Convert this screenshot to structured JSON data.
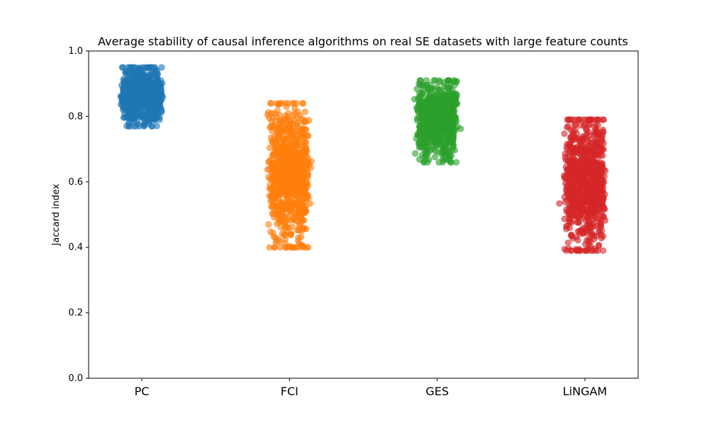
{
  "chart_data": {
    "type": "scatter",
    "title": "Average stability of causal inference algorithms on real SE datasets with large feature counts",
    "xlabel": "",
    "ylabel": "Jaccard index",
    "ylim": [
      0,
      1
    ],
    "yticks": [
      "0.0",
      "0.2",
      "0.4",
      "0.6",
      "0.8",
      "1.0"
    ],
    "categories": [
      "PC",
      "FCI",
      "GES",
      "LiNGAM"
    ],
    "colors": [
      "#1f77b4",
      "#ff7f0e",
      "#2ca02c",
      "#d62728"
    ],
    "grid": false,
    "legend": "none",
    "series": [
      {
        "category": "PC",
        "center": 0.865,
        "min": 0.77,
        "max": 0.95,
        "n": 700
      },
      {
        "category": "FCI",
        "center": 0.62,
        "min": 0.4,
        "max": 0.84,
        "n": 800
      },
      {
        "category": "GES",
        "center": 0.79,
        "min": 0.66,
        "max": 0.91,
        "n": 700
      },
      {
        "category": "LiNGAM",
        "center": 0.6,
        "min": 0.39,
        "max": 0.79,
        "n": 800
      }
    ]
  }
}
